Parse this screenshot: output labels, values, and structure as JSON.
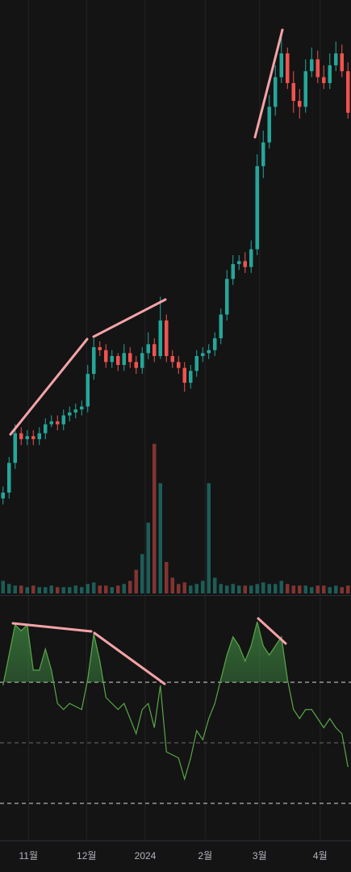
{
  "chart_data": {
    "type": "candlestick",
    "open": [
      16,
      17,
      22,
      27,
      26,
      26.5,
      26,
      27,
      28.5,
      29,
      28.5,
      30,
      30.5,
      31,
      31.5,
      37,
      41.5,
      41,
      39,
      40,
      38.5,
      40.5,
      39,
      38,
      40.5,
      42,
      40,
      46,
      40,
      39,
      38,
      35.5,
      37.5,
      40,
      40.5,
      41,
      43,
      47,
      53,
      55.5,
      56,
      55,
      58,
      72,
      76,
      82,
      87,
      91,
      86,
      83,
      82,
      88,
      90,
      87,
      86,
      89,
      91,
      88
    ],
    "high": [
      18,
      23,
      28.5,
      28,
      27.5,
      27.5,
      28,
      29.5,
      30,
      30,
      31,
      31.5,
      32,
      32.5,
      38.5,
      43,
      42.5,
      42,
      41,
      40.5,
      42,
      41.5,
      40,
      41.5,
      44,
      43,
      50,
      47,
      41,
      40,
      39,
      38.5,
      41,
      41.5,
      42,
      44,
      48,
      54.5,
      57,
      57,
      57.5,
      59.5,
      74,
      78,
      84,
      89,
      95,
      92,
      88,
      85,
      90,
      92,
      91.5,
      89,
      91,
      93,
      92.5,
      89.5
    ],
    "low": [
      15,
      16,
      21,
      25,
      25,
      25,
      25,
      26,
      28,
      27.5,
      27.5,
      29,
      29.5,
      30,
      30.5,
      36,
      40,
      38,
      38,
      37.5,
      37.5,
      38,
      37,
      37,
      39.5,
      39,
      39.5,
      39,
      38,
      37,
      34,
      34.5,
      36.5,
      39,
      39.5,
      40,
      42,
      46,
      52,
      54.5,
      54,
      54,
      57,
      70,
      75,
      80.5,
      86,
      85,
      81,
      80,
      81,
      87,
      86,
      85,
      85,
      88,
      87,
      80
    ],
    "close": [
      17,
      22,
      27,
      26,
      26.5,
      26,
      27,
      28.5,
      29,
      28.5,
      30,
      30.5,
      31,
      31.5,
      37,
      41.5,
      41,
      39,
      40,
      38.5,
      40.5,
      39,
      38,
      40.5,
      42,
      40,
      46,
      40,
      39,
      38,
      35.5,
      37.5,
      40,
      40.5,
      41,
      43,
      47,
      53,
      55.5,
      56,
      55,
      58,
      72,
      76,
      82,
      87,
      91,
      86,
      83,
      82,
      88,
      90,
      87,
      86,
      89,
      91,
      88,
      81
    ],
    "ylim": [
      0,
      100
    ],
    "up_color": "#26a69a",
    "down_color": "#ef5350",
    "volume": {
      "values": [
        8,
        6,
        5,
        5,
        4,
        5,
        4,
        4,
        5,
        4,
        4,
        4,
        5,
        4,
        6,
        7,
        5,
        5,
        4,
        5,
        6,
        8,
        15,
        25,
        45,
        95,
        70,
        20,
        10,
        6,
        7,
        5,
        6,
        8,
        70,
        10,
        6,
        5,
        6,
        5,
        5,
        5,
        6,
        7,
        6,
        6,
        8,
        6,
        5,
        5,
        5,
        4,
        5,
        5,
        4,
        5,
        4,
        5
      ],
      "ylim": [
        0,
        100
      ]
    },
    "rsi": {
      "values": [
        69,
        79,
        89,
        87,
        89,
        74,
        74,
        81,
        74,
        63,
        61,
        63,
        62,
        61,
        71,
        86,
        77,
        65,
        63,
        61,
        63,
        58,
        53,
        61,
        63,
        55,
        69,
        47,
        46,
        45,
        38,
        45,
        54,
        51,
        58,
        63,
        71,
        79,
        85,
        82,
        77,
        82,
        90,
        82,
        79,
        82,
        85,
        71,
        61,
        58,
        61,
        61,
        58,
        55,
        58,
        55,
        53,
        42
      ],
      "ylim": [
        18,
        98
      ],
      "levels": [
        70,
        50,
        30
      ],
      "color": "#5aa64b"
    },
    "xticks": [
      {
        "value": 4.2,
        "label": "11월"
      },
      {
        "value": 13.8,
        "label": "12월"
      },
      {
        "value": 23.5,
        "label": "2024"
      },
      {
        "value": 33.4,
        "label": "2월"
      },
      {
        "value": 42.4,
        "label": "3월"
      },
      {
        "value": 52.4,
        "label": "4월"
      }
    ]
  }
}
